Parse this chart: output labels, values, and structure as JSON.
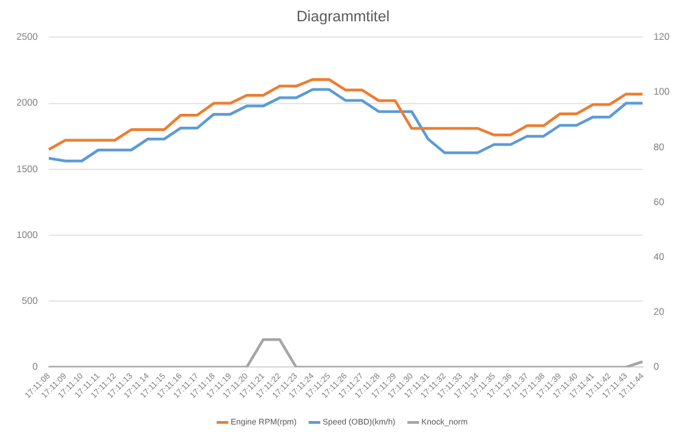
{
  "chart_data": {
    "type": "line",
    "title": "Diagrammtitel",
    "categories": [
      "17:11:08",
      "17:11:09",
      "17:11:10",
      "17:11:11",
      "17:11:12",
      "17:11:13",
      "17:11:14",
      "17:11:15",
      "17:11:16",
      "17:11:17",
      "17:11:18",
      "17:11:19",
      "17:11:20",
      "17:11:21",
      "17:11:22",
      "17:11:23",
      "17:11:24",
      "17:11:25",
      "17:11:26",
      "17:11:27",
      "17:11:28",
      "17:11:29",
      "17:11:30",
      "17:11:31",
      "17:11:32",
      "17:11:33",
      "17:11:34",
      "17:11:35",
      "17:11:36",
      "17:11:37",
      "17:11:38",
      "17:11:39",
      "17:11:40",
      "17:11:41",
      "17:11:42",
      "17:11:43",
      "17:11:44"
    ],
    "series": [
      {
        "name": "Engine RPM(rpm)",
        "color": "#ed7d31",
        "values": [
          1650,
          1720,
          1720,
          1720,
          1720,
          1800,
          1800,
          1800,
          1910,
          1910,
          2000,
          2000,
          2060,
          2060,
          2130,
          2130,
          2180,
          2180,
          2100,
          2100,
          2020,
          2020,
          1810,
          1810,
          1810,
          1810,
          1810,
          1760,
          1760,
          1830,
          1830,
          1920,
          1920,
          1990,
          1990,
          2070,
          2070
        ]
      },
      {
        "name": "Speed (OBD)(km/h)",
        "color": "#5b9bd5",
        "axis": "y2",
        "values": [
          76,
          75,
          75,
          79,
          79,
          79,
          83,
          83,
          87,
          87,
          92,
          92,
          95,
          95,
          98,
          98,
          101,
          101,
          97,
          97,
          93,
          93,
          93,
          83,
          78,
          78,
          78,
          81,
          81,
          84,
          84,
          88,
          88,
          91,
          91,
          96,
          96
        ]
      },
      {
        "name": "Knock_norm",
        "color": "#a5a5a5",
        "axis": "y2",
        "values": [
          0,
          0,
          0,
          0,
          0,
          0,
          0,
          0,
          0,
          0,
          0,
          0,
          0,
          10,
          10,
          0,
          0,
          0,
          0,
          0,
          0,
          0,
          0,
          0,
          0,
          0,
          0,
          0,
          0,
          0,
          0,
          0,
          0,
          0,
          0,
          0,
          2
        ]
      }
    ],
    "ylim": [
      0,
      2500
    ],
    "yticks": [
      0,
      500,
      1000,
      1500,
      2000,
      2500
    ],
    "y2lim": [
      0,
      120
    ],
    "y2ticks": [
      0,
      20,
      40,
      60,
      80,
      100,
      120
    ],
    "grid": "y",
    "legend": "bottom",
    "marker": "none",
    "line_style": "solid"
  }
}
